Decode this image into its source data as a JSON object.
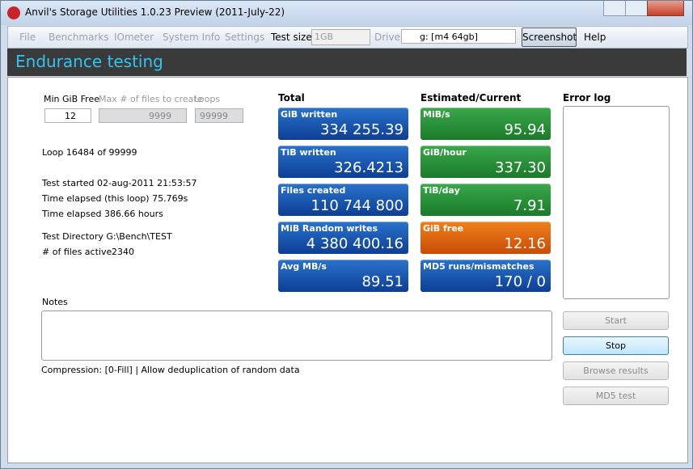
{
  "window": {
    "title": "Anvil's Storage Utilities 1.0.23 Preview (2011-July-22)"
  },
  "menu": {
    "items": [
      "File",
      "Benchmarks",
      "IOmeter",
      "System Info",
      "Settings"
    ],
    "test_size_label": "Test size",
    "test_size": "1GB",
    "drive_label": "Drive",
    "drive": "g: [m4 64gb]",
    "screenshot": "Screenshot",
    "help": "Help"
  },
  "header": {
    "title": "Endurance testing"
  },
  "settings": {
    "min_free_label": "Min GiB Free",
    "min_free": "12",
    "max_files_label": "Max # of files to create",
    "max_files": "9999",
    "loops_label": "Loops",
    "loops": "99999"
  },
  "status": {
    "loop": "Loop 16484 of 99999",
    "started": "Test started 02-aug-2011 21:53:57",
    "elapsed_loop": "Time elapsed (this loop) 75.769s",
    "elapsed": "Time elapsed 386.66 hours",
    "directory": "Test Directory G:\\Bench\\TEST",
    "files_active_label": "# of files active",
    "files_active": "2340"
  },
  "total": {
    "heading": "Total",
    "tiles": [
      {
        "label": "GiB written",
        "value": "334 255.39"
      },
      {
        "label": "TiB written",
        "value": "326.4213"
      },
      {
        "label": "Files created",
        "value": "110 744 800"
      },
      {
        "label": "MiB Random writes",
        "value": "4 380 400.16"
      },
      {
        "label": "Avg MB/s",
        "value": "89.51"
      }
    ]
  },
  "estimated": {
    "heading": "Estimated/Current",
    "tiles": [
      {
        "label": "MiB/s",
        "value": "95.94"
      },
      {
        "label": "GiB/hour",
        "value": "337.30"
      },
      {
        "label": "TiB/day",
        "value": "7.91"
      },
      {
        "label": "GiB free",
        "value": "12.16"
      },
      {
        "label": "MD5 runs/mismatches",
        "value": "170 / 0"
      }
    ]
  },
  "error_log": {
    "heading": "Error log"
  },
  "notes": {
    "label": "Notes",
    "compression": "Compression: [0-Fill] | Allow deduplication of random data"
  },
  "buttons": [
    "Start",
    "Stop",
    "Browse results",
    "MD5 test"
  ]
}
